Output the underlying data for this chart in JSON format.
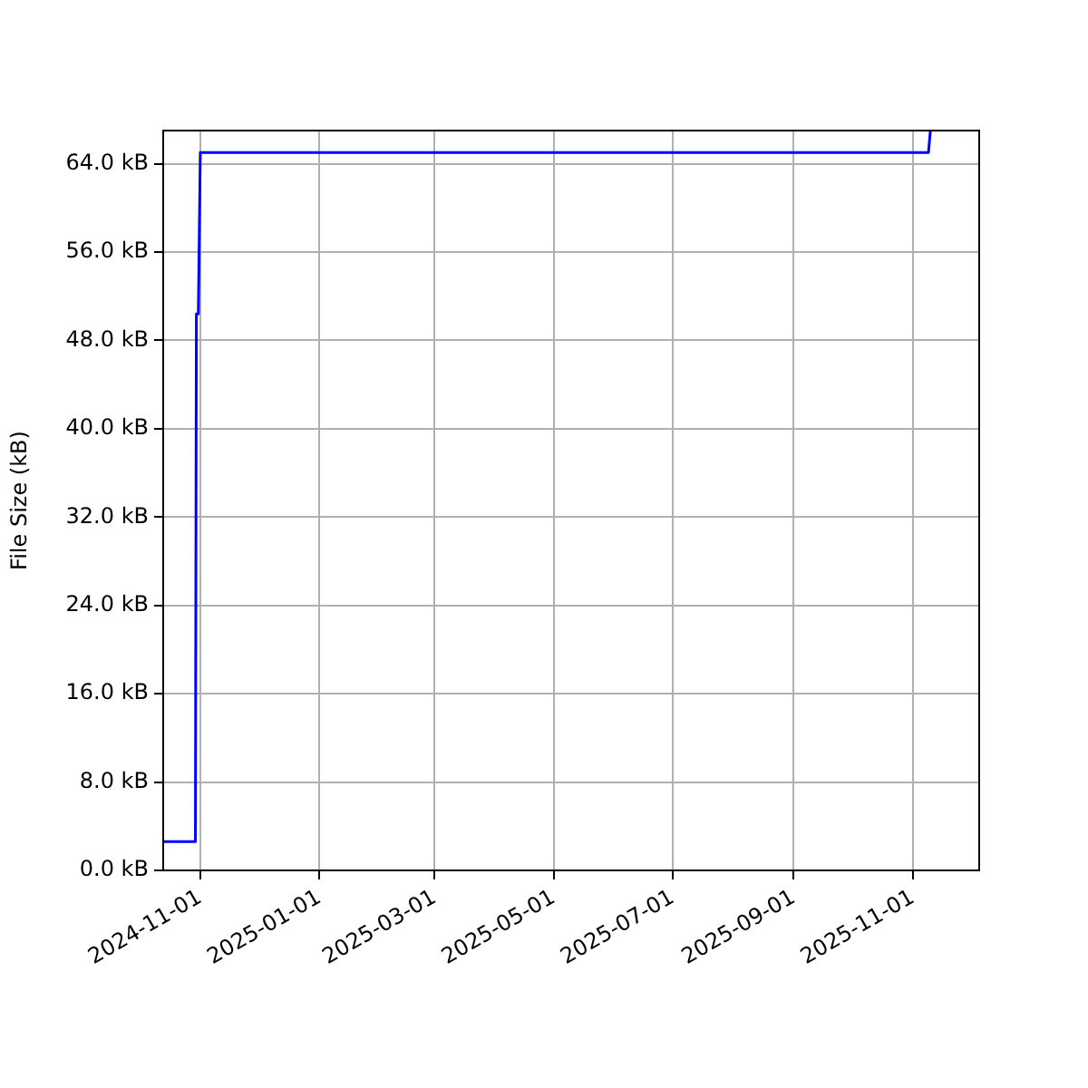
{
  "chart_data": {
    "type": "line",
    "ylabel": "File Size (kB)",
    "x": [
      "2024-10-13",
      "2024-10-29T12:00",
      "2024-10-30",
      "2024-10-31",
      "2024-11-01",
      "2025-11-09",
      "2025-11-10"
    ],
    "series": [
      {
        "color": "#0000ff",
        "values": [
          2.6,
          2.6,
          50.4,
          50.4,
          65.0,
          65.0,
          67
        ]
      }
    ],
    "xlim": [
      "2024-10-13",
      "2025-12-05"
    ],
    "xticks": [
      "2024-11-01",
      "2025-01-01",
      "2025-03-01",
      "2025-05-01",
      "2025-07-01",
      "2025-09-01",
      "2025-11-01"
    ],
    "ylim": [
      0,
      67
    ],
    "yticks": [
      {
        "value": 0,
        "label": "0.0 kB"
      },
      {
        "value": 8,
        "label": "8.0 kB"
      },
      {
        "value": 16,
        "label": "16.0 kB"
      },
      {
        "value": 24,
        "label": "24.0 kB"
      },
      {
        "value": 32,
        "label": "32.0 kB"
      },
      {
        "value": 40,
        "label": "40.0 kB"
      },
      {
        "value": 48,
        "label": "48.0 kB"
      },
      {
        "value": 56,
        "label": "56.0 kB"
      },
      {
        "value": 64,
        "label": "64.0 kB"
      }
    ],
    "grid": true,
    "legend": false,
    "marker": "none",
    "line_style": "solid"
  }
}
